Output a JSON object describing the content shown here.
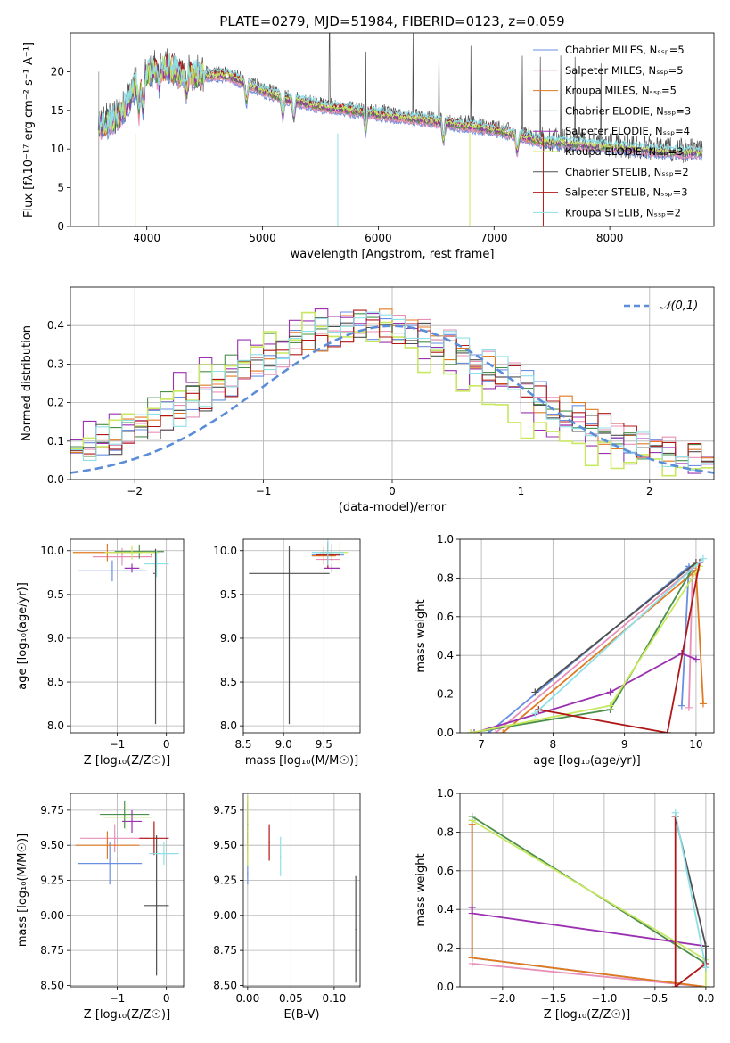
{
  "title": "PLATE=0279, MJD=51984, FIBERID=0123, z=0.059",
  "series_colors": [
    "#6a8fe0",
    "#e88fb8",
    "#e07a20",
    "#4a8f4a",
    "#9b30b0",
    "#c8e860",
    "#505050",
    "#b01818",
    "#8ee0e8"
  ],
  "chart_data": [
    {
      "id": "spectrum",
      "type": "line",
      "xlabel": "wavelength [Angstrom, rest frame]",
      "ylabel": "Flux [fλ10⁻¹⁷ erg cm⁻² s⁻¹ A⁻¹]",
      "xlim": [
        3340,
        8900
      ],
      "ylim": [
        0,
        25
      ],
      "xticks": [
        4000,
        5000,
        6000,
        7000,
        8000
      ],
      "yticks": [
        0,
        5,
        10,
        15,
        20
      ],
      "grid": false,
      "legend_position": "upper-right",
      "legend": [
        "Chabrier MILES, N_SSP=5",
        "Salpeter MILES, N_SSP=5",
        "Kroupa MILES, N_SSP=5",
        "Chabrier ELODIE, N_SSP=3",
        "Salpeter ELODIE, N_SSP=4",
        "Kroupa ELODIE, N_SSP=3",
        "Chabrier STELIB, N_SSP=2",
        "Salpeter STELIB, N_SSP=3",
        "Kroupa STELIB, N_SSP=2"
      ],
      "continuum": {
        "x": [
          3580,
          3700,
          3800,
          3900,
          4000,
          4100,
          4200,
          4300,
          4500,
          4700,
          5000,
          5200,
          5500,
          6000,
          6500,
          7000,
          7400,
          7800,
          8200,
          8600,
          8800
        ],
        "y": [
          13,
          13.5,
          15,
          18,
          19.5,
          20.5,
          20.5,
          19.5,
          19.5,
          19.5,
          17.5,
          16.5,
          15.5,
          14.5,
          13.5,
          12.5,
          11,
          10.5,
          10,
          9.5,
          9.5
        ]
      },
      "absorption_lines_x": [
        3934,
        3969,
        4102,
        4340,
        4861,
        5175,
        5270,
        5890,
        6563,
        7200
      ],
      "spikes_x": [
        5578,
        5893,
        6300,
        6525,
        6800,
        7245,
        7400,
        7575,
        7700,
        7925
      ],
      "deep_drops_x": [
        3900,
        5650,
        6790,
        7425
      ]
    },
    {
      "id": "residual_hist",
      "type": "histogram",
      "xlabel": "(data-model)/error",
      "ylabel": "Normed distribution",
      "xlim": [
        -2.5,
        2.5
      ],
      "ylim": [
        0,
        0.5
      ],
      "xticks": [
        -2,
        -1,
        0,
        1,
        2
      ],
      "yticks": [
        0.0,
        0.1,
        0.2,
        0.3,
        0.4
      ],
      "grid": true,
      "legend_position": "upper-right",
      "gaussian_label": "𝒩(0,1)",
      "bins": 50
    },
    {
      "id": "age_vs_Z",
      "type": "errorbar",
      "xlabel": "Z [log₁₀(Z/Z☉)]",
      "ylabel": "age  [log₁₀(age/yr)]",
      "xlim": [
        -1.95,
        0.35
      ],
      "ylim": [
        7.92,
        10.13
      ],
      "xticks": [
        -1,
        0
      ],
      "yticks": [
        8.0,
        8.5,
        9.0,
        9.5,
        10.0
      ],
      "grid": true,
      "points": [
        {
          "x": -1.1,
          "xerr": 0.7,
          "y": 9.77,
          "yerr": 0.12
        },
        {
          "x": -0.9,
          "xerr": 0.6,
          "y": 9.93,
          "yerr": 0.1
        },
        {
          "x": -1.2,
          "xerr": 0.7,
          "y": 9.98,
          "yerr": 0.1
        },
        {
          "x": -0.55,
          "xerr": 0.5,
          "y": 9.99,
          "yerr": 0.08
        },
        {
          "x": -0.7,
          "xerr": 0.15,
          "y": 9.8,
          "yerr": 0.05
        },
        {
          "x": -0.7,
          "xerr": 0.55,
          "y": 9.98,
          "yerr": 0.08
        },
        {
          "x": -0.25,
          "xerr": 0.0,
          "y": 9.74,
          "yerr": 0.0
        },
        {
          "x": -0.3,
          "xerr": 0.0,
          "y": 9.95,
          "yerr": 0.0
        },
        {
          "x": -0.2,
          "xerr": 0.25,
          "y": 9.85,
          "yerr": 0.15
        }
      ]
    },
    {
      "id": "age_vs_mass",
      "type": "errorbar",
      "xlabel": "mass [log₁₀(M/M☉)]",
      "ylabel": "",
      "xlim": [
        8.5,
        9.95
      ],
      "ylim": [
        7.92,
        10.13
      ],
      "xticks": [
        8.5,
        9.0,
        9.5
      ],
      "yticks": [
        8.0,
        8.5,
        9.0,
        9.5,
        10.0
      ],
      "grid": true,
      "points": [
        {
          "x": 9.55,
          "xerr": 0.2,
          "y": 9.95,
          "yerr": 0.1
        },
        {
          "x": 9.55,
          "xerr": 0.15,
          "y": 9.9,
          "yerr": 0.1
        },
        {
          "x": 9.5,
          "xerr": 0.15,
          "y": 9.94,
          "yerr": 0.1
        },
        {
          "x": 9.6,
          "xerr": 0.15,
          "y": 9.98,
          "yerr": 0.1
        },
        {
          "x": 9.6,
          "xerr": 0.1,
          "y": 9.8,
          "yerr": 0.05
        },
        {
          "x": 9.7,
          "xerr": 0.1,
          "y": 9.98,
          "yerr": 0.12
        },
        {
          "x": 9.07,
          "xerr": 0.5,
          "y": 9.74,
          "yerr": 0.0
        },
        {
          "x": 9.55,
          "xerr": 0.15,
          "y": 9.95,
          "yerr": 0.15
        },
        {
          "x": 9.55,
          "xerr": 0.2,
          "y": 9.98,
          "yerr": 0.15
        }
      ]
    },
    {
      "id": "massweight_vs_age",
      "type": "line",
      "xlabel": "age  [log₁₀(age/yr)]",
      "ylabel": "mass weight",
      "xlim": [
        6.7,
        10.25
      ],
      "ylim": [
        0,
        1
      ],
      "xticks": [
        7,
        8,
        9,
        10
      ],
      "yticks": [
        0.0,
        0.2,
        0.4,
        0.6,
        0.8,
        1.0
      ],
      "grid": true,
      "series": [
        {
          "x": [
            7.1,
            9.9,
            9.8
          ],
          "y": [
            0.0,
            0.86,
            0.14
          ]
        },
        {
          "x": [
            7.2,
            9.95,
            9.9
          ],
          "y": [
            0.0,
            0.85,
            0.13
          ]
        },
        {
          "x": [
            7.3,
            10.0,
            10.1
          ],
          "y": [
            0.0,
            0.84,
            0.15
          ]
        },
        {
          "x": [
            6.85,
            8.8,
            10.0
          ],
          "y": [
            0.0,
            0.12,
            0.88
          ]
        },
        {
          "x": [
            6.9,
            8.8,
            9.8,
            10.0
          ],
          "y": [
            0.0,
            0.21,
            0.41,
            0.38
          ]
        },
        {
          "x": [
            6.85,
            8.8,
            10.05
          ],
          "y": [
            0.0,
            0.14,
            0.86
          ]
        },
        {
          "x": [
            7.75,
            10.0
          ],
          "y": [
            0.21,
            0.88
          ]
        },
        {
          "x": [
            7.8,
            9.6,
            10.05
          ],
          "y": [
            0.12,
            0.0,
            0.88
          ]
        },
        {
          "x": [
            7.75,
            10.1
          ],
          "y": [
            0.1,
            0.9
          ]
        }
      ]
    },
    {
      "id": "mass_vs_Z",
      "type": "errorbar",
      "xlabel": "Z [log₁₀(Z/Z☉)]",
      "ylabel": "mass [log₁₀(M/M☉)]",
      "xlim": [
        -1.95,
        0.35
      ],
      "ylim": [
        8.49,
        9.87
      ],
      "xticks": [
        -1,
        0
      ],
      "yticks": [
        8.5,
        8.75,
        9.0,
        9.25,
        9.5,
        9.75
      ],
      "grid": true,
      "points": [
        {
          "x": -1.15,
          "xerr": 0.65,
          "y": 9.37,
          "yerr": 0.15
        },
        {
          "x": -1.05,
          "xerr": 0.7,
          "y": 9.55,
          "yerr": 0.1
        },
        {
          "x": -1.2,
          "xerr": 0.65,
          "y": 9.5,
          "yerr": 0.1
        },
        {
          "x": -0.85,
          "xerr": 0.5,
          "y": 9.72,
          "yerr": 0.1
        },
        {
          "x": -0.7,
          "xerr": 0.2,
          "y": 9.67,
          "yerr": 0.08
        },
        {
          "x": -0.8,
          "xerr": 0.5,
          "y": 9.7,
          "yerr": 0.1
        },
        {
          "x": -0.2,
          "xerr": 0.25,
          "y": 9.07,
          "yerr": 0.5
        },
        {
          "x": -0.25,
          "xerr": 0.3,
          "y": 9.55,
          "yerr": 0.12
        },
        {
          "x": -0.05,
          "xerr": 0.3,
          "y": 9.44,
          "yerr": 0.08
        }
      ]
    },
    {
      "id": "mass_vs_ebv",
      "type": "errorbar",
      "xlabel": "E(B-V)",
      "ylabel": "",
      "xlim": [
        -0.005,
        0.13
      ],
      "ylim": [
        8.49,
        9.87
      ],
      "xticks": [
        0.0,
        0.05,
        0.1
      ],
      "yticks": [
        8.5,
        8.75,
        9.0,
        9.25,
        9.5,
        9.75
      ],
      "grid": true,
      "points": [
        {
          "x": 0.0,
          "xerr": 0.0,
          "y": 9.3,
          "yerr": 0.08
        },
        {
          "x": 0.0,
          "xerr": 0.0,
          "y": 9.55,
          "yerr": 0.1
        },
        {
          "x": 0.0,
          "xerr": 0.0,
          "y": 9.5,
          "yerr": 0.12
        },
        {
          "x": 0.0,
          "xerr": 0.0,
          "y": 9.7,
          "yerr": 0.15
        },
        {
          "x": 0.0,
          "xerr": 0.0,
          "y": 9.65,
          "yerr": 0.15
        },
        {
          "x": 0.0,
          "xerr": 0.0,
          "y": 9.6,
          "yerr": 0.25
        },
        {
          "x": 0.125,
          "xerr": 0.0,
          "y": 8.9,
          "yerr": 0.38
        },
        {
          "x": 0.025,
          "xerr": 0.0,
          "y": 9.52,
          "yerr": 0.13
        },
        {
          "x": 0.038,
          "xerr": 0.0,
          "y": 9.42,
          "yerr": 0.14
        }
      ]
    },
    {
      "id": "massweight_vs_Z",
      "type": "line",
      "xlabel": "Z [log₁₀(Z/Z☉)]",
      "ylabel": "mass weight",
      "xlim": [
        -2.42,
        0.08
      ],
      "ylim": [
        0,
        1
      ],
      "xticks": [
        -2.0,
        -1.5,
        -1.0,
        -0.5,
        0.0
      ],
      "yticks": [
        0.0,
        0.2,
        0.4,
        0.6,
        0.8,
        1.0
      ],
      "grid": true,
      "series": [
        {
          "x": [
            -2.3,
            -2.3,
            0.0
          ],
          "y": [
            0.86,
            0.15,
            0.0
          ]
        },
        {
          "x": [
            -2.3,
            0.0
          ],
          "y": [
            0.12,
            0.0
          ]
        },
        {
          "x": [
            -2.3,
            -2.3,
            0.0
          ],
          "y": [
            0.84,
            0.15,
            0.0
          ]
        },
        {
          "x": [
            -2.3,
            0.0
          ],
          "y": [
            0.88,
            0.12
          ]
        },
        {
          "x": [
            -2.3,
            -2.3,
            0.0
          ],
          "y": [
            0.41,
            0.38,
            0.21
          ]
        },
        {
          "x": [
            -2.3,
            0.0,
            0.0
          ],
          "y": [
            0.86,
            0.14,
            0.0
          ]
        },
        {
          "x": [
            -0.3,
            0.0,
            0.0
          ],
          "y": [
            0.88,
            0.21,
            0.1
          ]
        },
        {
          "x": [
            -0.3,
            -0.3,
            0.0
          ],
          "y": [
            0.88,
            0.0,
            0.12
          ]
        },
        {
          "x": [
            -0.3,
            0.0
          ],
          "y": [
            0.9,
            0.1
          ]
        }
      ]
    }
  ]
}
